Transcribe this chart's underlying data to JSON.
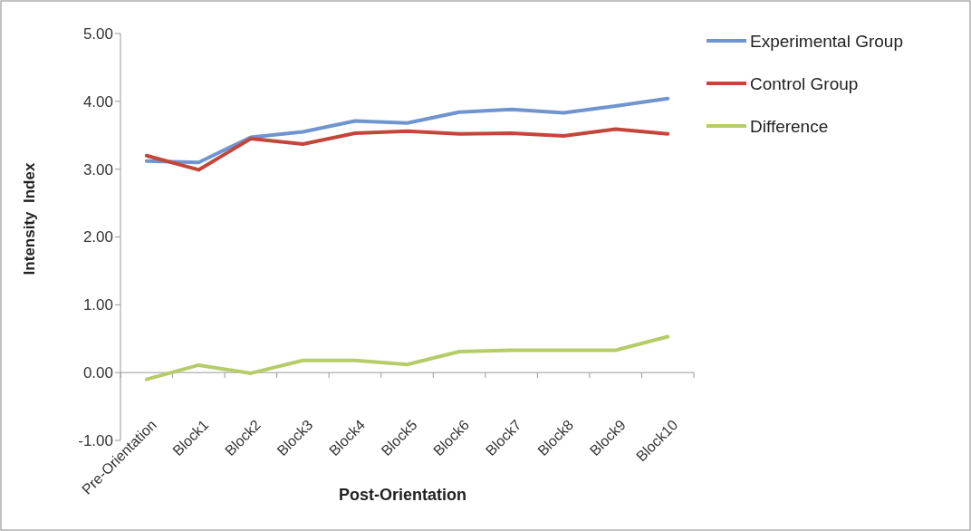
{
  "chart_data": {
    "type": "line",
    "xlabel": "Post-Orientation",
    "ylabel": "Intensity  Index",
    "categories": [
      "Pre-Orientation",
      "Block1",
      "Block2",
      "Block3",
      "Block4",
      "Block5",
      "Block6",
      "Block7",
      "Block8",
      "Block9",
      "Block10"
    ],
    "series": [
      {
        "name": "Experimental Group",
        "color": "#7094cf",
        "values": [
          3.12,
          3.1,
          3.47,
          3.55,
          3.71,
          3.68,
          3.84,
          3.88,
          3.83,
          3.93,
          4.04
        ]
      },
      {
        "name": "Control Group",
        "color": "#c4463a",
        "values": [
          3.2,
          2.99,
          3.45,
          3.37,
          3.53,
          3.56,
          3.52,
          3.53,
          3.49,
          3.59,
          3.52
        ]
      },
      {
        "name": "Difference",
        "color": "#b6cc68",
        "values": [
          -0.1,
          0.11,
          -0.01,
          0.18,
          0.18,
          0.12,
          0.31,
          0.33,
          0.33,
          0.33,
          0.53
        ]
      }
    ],
    "ylim": [
      -1,
      5
    ],
    "yticks": [
      {
        "value": -1,
        "label": "-1.00"
      },
      {
        "value": 0,
        "label": "0.00"
      },
      {
        "value": 1,
        "label": "1.00"
      },
      {
        "value": 2,
        "label": "2.00"
      },
      {
        "value": 3,
        "label": "3.00"
      },
      {
        "value": 4,
        "label": "4.00"
      },
      {
        "value": 5,
        "label": "5.00"
      }
    ],
    "legend": "top right",
    "marker": "none",
    "line_style": "solid"
  }
}
